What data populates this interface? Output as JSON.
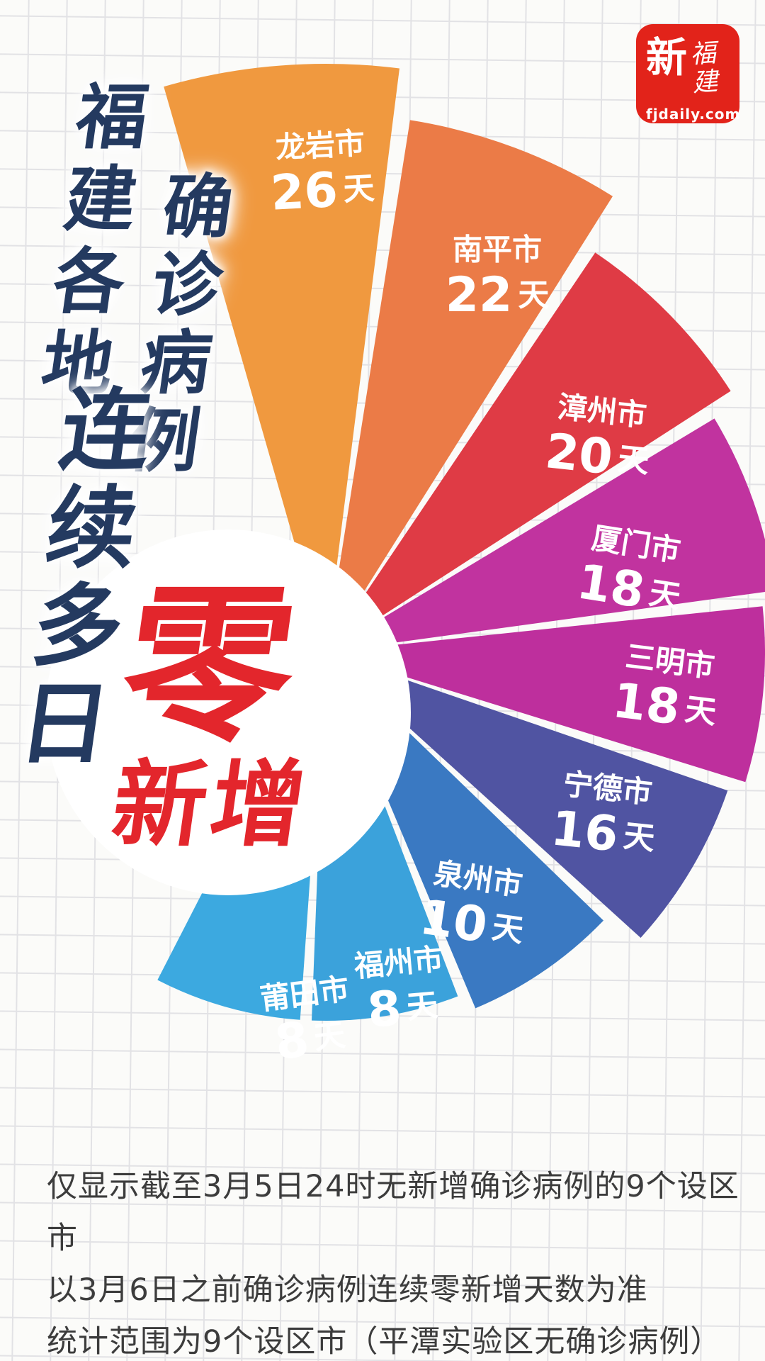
{
  "page": {
    "background_color": "#fbfbf9",
    "grid_color": "#cfcfd6"
  },
  "logo": {
    "brand_char": "新",
    "brand_script": "福建",
    "domain": "fjdaily.com",
    "bg_color": "#e2231a",
    "text_color": "#ffffff"
  },
  "title": {
    "line1": "福建各地",
    "line2": "确诊病例",
    "line3": "连续多日",
    "zero_char": "零",
    "tail": "新增",
    "navy_color": "#243a60",
    "red_color": "#e3262c"
  },
  "chart_data": {
    "type": "pie",
    "variant": "nightingale-rose-fan",
    "title": "福建各地确诊病例连续多日零新增",
    "categories": [
      "龙岩市",
      "南平市",
      "漳州市",
      "厦门市",
      "三明市",
      "宁德市",
      "泉州市",
      "福州市",
      "莆田市"
    ],
    "values": [
      26,
      22,
      20,
      18,
      18,
      16,
      10,
      8,
      8
    ],
    "unit": "天",
    "value_label_color": "#ffffff",
    "colors": [
      "#F0993F",
      "#EB7B47",
      "#DF3B45",
      "#C1339F",
      "#BE2F9D",
      "#5054A2",
      "#3A79C2",
      "#3BA2DB",
      "#3CA9E0"
    ],
    "legend": "none",
    "grid": "graph-paper background"
  },
  "footnotes": {
    "line1": "仅显示截至3月5日24时无新增确诊病例的9个设区市",
    "line2": "以3月6日之前确诊病例连续零新增天数为准",
    "line3": "统计范围为9个设区市（平潭实验区无确诊病例）"
  }
}
